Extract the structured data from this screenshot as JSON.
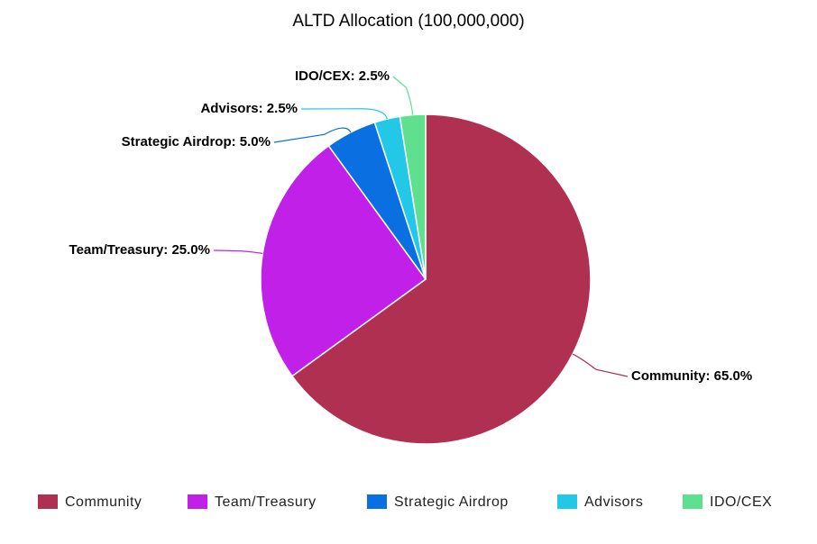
{
  "chart_data": {
    "type": "pie",
    "title": "ALTD Allocation (100,000,000)",
    "categories": [
      "Community",
      "Team/Treasury",
      "Strategic Airdrop",
      "Advisors",
      "IDO/CEX"
    ],
    "values": [
      65,
      25,
      5,
      2.5,
      2.5
    ],
    "value_labels": [
      "Community: 65.0%",
      "Team/Treasury: 25.0%",
      "Strategic Airdrop: 5.0%",
      "Advisors: 2.5%",
      "IDO/CEX: 2.5%"
    ],
    "colors": [
      "#b03052",
      "#c020e8",
      "#0a6fe0",
      "#22c8e6",
      "#5ee08e"
    ],
    "legend": "bottom"
  }
}
